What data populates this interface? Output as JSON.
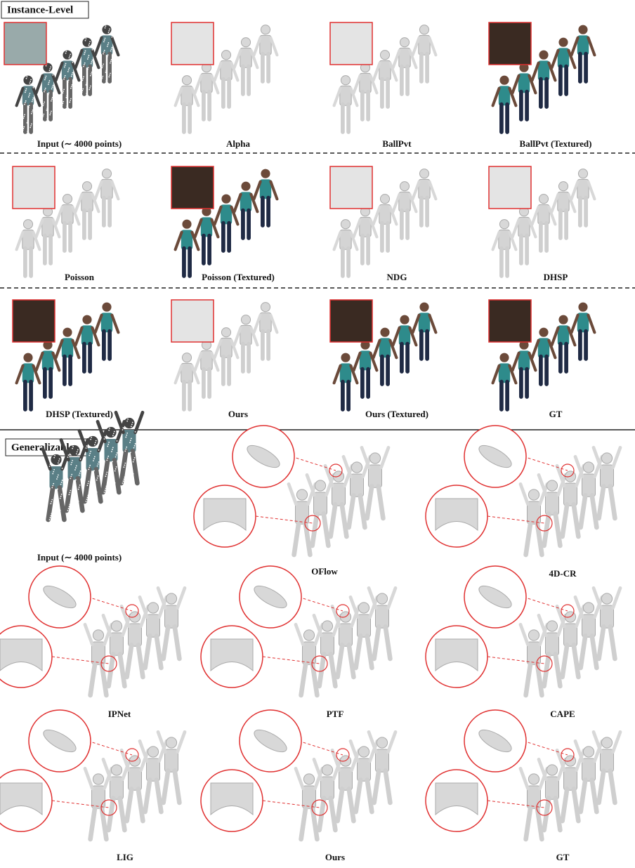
{
  "instance_level": {
    "title": "Instance-Level",
    "panels": [
      {
        "caption": "Input (∼ 4000 points)"
      },
      {
        "caption": "Alpha"
      },
      {
        "caption": "BallPvt"
      },
      {
        "caption": "BallPvt (Textured)"
      },
      {
        "caption": "Poisson"
      },
      {
        "caption": "Poisson (Textured)"
      },
      {
        "caption": "NDG"
      },
      {
        "caption": "DHSP"
      },
      {
        "caption": "DHSP (Textured)"
      },
      {
        "caption": "Ours"
      },
      {
        "caption": "Ours (Textured)"
      },
      {
        "caption": "GT"
      }
    ]
  },
  "generalizable": {
    "title": "Generalizable",
    "panels": [
      {
        "caption": "Input (∼ 4000 points)"
      },
      {
        "caption": "OFlow"
      },
      {
        "caption": "4D-CR"
      },
      {
        "caption": "IPNet"
      },
      {
        "caption": "PTF"
      },
      {
        "caption": "CAPE"
      },
      {
        "caption": "LIG"
      },
      {
        "caption": "Ours"
      },
      {
        "caption": "GT"
      }
    ]
  }
}
